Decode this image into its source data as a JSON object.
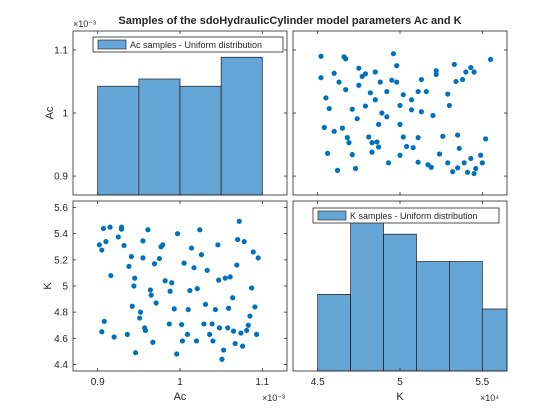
{
  "figure": {
    "title": "Samples of the sdoHydraulicCylinder model parameters Ac and K",
    "colors": {
      "face": "#66A6D6",
      "edge": "#1A1A1A",
      "marker": "#0072BD",
      "axis": "#262626"
    }
  },
  "chart_data": [
    {
      "id": "ac-hist",
      "type": "bar",
      "subtype": "histogram",
      "legend": "Ac samples - Uniform distribution",
      "legend_location": "top",
      "bin_edges": [
        0.0009,
        0.00095,
        0.001,
        0.00105,
        0.0011
      ],
      "counts": [
        3,
        3.2,
        3,
        3.8
      ],
      "xlim": [
        0.00087,
        0.00113
      ],
      "ylim": [
        0.00087,
        0.00113
      ],
      "yticks": [
        0.0009,
        0.001,
        0.0011
      ],
      "ytick_labels": [
        "0.9",
        "1",
        "1.1"
      ],
      "ylabel": "Ac",
      "y_exponent_label": "×10⁻³"
    },
    {
      "id": "ac-vs-k-scatter",
      "type": "scatter",
      "x_name": "K",
      "y_name": "Ac",
      "xlim": [
        43500,
        56500
      ],
      "ylim": [
        0.00087,
        0.00113
      ],
      "points": [
        [
          45200,
          0.001056
        ],
        [
          45500,
          0.001024
        ],
        [
          45700,
          0.001007
        ],
        [
          45400,
          0.000977
        ],
        [
          45600,
          0.000936
        ],
        [
          46000,
          0.000971
        ],
        [
          45200,
          0.00109
        ],
        [
          46300,
          0.001049
        ],
        [
          46700,
          0.001037
        ],
        [
          46500,
          0.000976
        ],
        [
          46200,
          0.000909
        ],
        [
          46800,
          0.000961
        ],
        [
          47100,
          0.001006
        ],
        [
          47300,
          0.000912
        ],
        [
          46700,
          0.001086
        ],
        [
          47500,
          0.001071
        ],
        [
          47100,
          0.000934
        ],
        [
          47900,
          0.001062
        ],
        [
          48200,
          0.001032
        ],
        [
          48300,
          0.000953
        ],
        [
          48600,
          0.000954
        ],
        [
          47900,
          0.001011
        ],
        [
          48800,
          0.001049
        ],
        [
          48300,
          0.000938
        ],
        [
          48500,
          0.001065
        ],
        [
          48700,
          0.000946
        ],
        [
          48900,
          0.001
        ],
        [
          49200,
          0.000994
        ],
        [
          48700,
          0.000982
        ],
        [
          46000,
          0.001063
        ],
        [
          46600,
          0.001089
        ],
        [
          47700,
          0.001058
        ],
        [
          46900,
          0.000953
        ],
        [
          47400,
          0.000991
        ],
        [
          48100,
          0.000962
        ],
        [
          48500,
          0.001021
        ],
        [
          47500,
          0.001044
        ],
        [
          49300,
          0.000921
        ],
        [
          49200,
          0.001034
        ],
        [
          49600,
          0.001094
        ],
        [
          50000,
          0.000933
        ],
        [
          49800,
          0.001049
        ],
        [
          50000,
          0.000982
        ],
        [
          50000,
          0.001012
        ],
        [
          49500,
          0.001052
        ],
        [
          50200,
          0.000962
        ],
        [
          50400,
          0.000947
        ],
        [
          50800,
          0.000945
        ],
        [
          51100,
          0.000922
        ],
        [
          51300,
          0.001002
        ],
        [
          51100,
          0.001034
        ],
        [
          51300,
          0.001053
        ],
        [
          50700,
          0.001005
        ],
        [
          52200,
          0.001067
        ],
        [
          52200,
          0.001061
        ],
        [
          52400,
          0.000935
        ],
        [
          52600,
          0.000963
        ],
        [
          52000,
          0.000996
        ],
        [
          52900,
          0.000921
        ],
        [
          53000,
          0.001012
        ],
        [
          53200,
          0.000907
        ],
        [
          53400,
          0.00105
        ],
        [
          53300,
          0.001077
        ],
        [
          53500,
          0.000965
        ],
        [
          53600,
          0.000944
        ],
        [
          53500,
          0.000913
        ],
        [
          53900,
          0.000921
        ],
        [
          54100,
          0.000906
        ],
        [
          54000,
          0.001065
        ],
        [
          54300,
          0.000928
        ],
        [
          54500,
          0.000904
        ],
        [
          54600,
          0.000912
        ],
        [
          54900,
          0.000933
        ],
        [
          55200,
          0.000959
        ],
        [
          55500,
          0.001085
        ],
        [
          54500,
          0.001065
        ],
        [
          55000,
          0.000921
        ],
        [
          54300,
          0.001072
        ],
        [
          53800,
          0.001053
        ],
        [
          51900,
          0.000914
        ],
        [
          51700,
          0.000918
        ],
        [
          51600,
          0.001034
        ],
        [
          51100,
          0.000961
        ],
        [
          50700,
          0.001021
        ],
        [
          50200,
          0.001029
        ],
        [
          49800,
          0.001075
        ],
        [
          52900,
          0.00103
        ]
      ]
    },
    {
      "id": "k-vs-ac-scatter",
      "type": "scatter",
      "x_name": "Ac",
      "y_name": "K",
      "xlim": [
        0.00087,
        0.00113
      ],
      "ylim": [
        43500,
        56500
      ],
      "points": [
        [
          0.000902,
          53150
        ],
        [
          0.000905,
          52750
        ],
        [
          0.000907,
          54400
        ],
        [
          0.00091,
          53400
        ],
        [
          0.000905,
          46500
        ],
        [
          0.000908,
          47300
        ],
        [
          0.000915,
          54500
        ],
        [
          0.000916,
          50800
        ],
        [
          0.00092,
          46100
        ],
        [
          0.000925,
          53750
        ],
        [
          0.000929,
          54500
        ],
        [
          0.000929,
          54350
        ],
        [
          0.000932,
          53100
        ],
        [
          0.000936,
          46300
        ],
        [
          0.000938,
          51500
        ],
        [
          0.000941,
          52250
        ],
        [
          0.000942,
          48450
        ],
        [
          0.000944,
          50000
        ],
        [
          0.000945,
          50600
        ],
        [
          0.000946,
          44900
        ],
        [
          0.000951,
          47550
        ],
        [
          0.000952,
          48000
        ],
        [
          0.000955,
          52150
        ],
        [
          0.000955,
          53450
        ],
        [
          0.000957,
          46800
        ],
        [
          0.000958,
          46600
        ],
        [
          0.000961,
          54300
        ],
        [
          0.000964,
          49700
        ],
        [
          0.000965,
          49300
        ],
        [
          0.000967,
          45700
        ],
        [
          0.000969,
          51700
        ],
        [
          0.000971,
          48700
        ],
        [
          0.000975,
          52100
        ],
        [
          0.000977,
          53000
        ],
        [
          0.000979,
          53150
        ],
        [
          0.000982,
          50400
        ],
        [
          0.000987,
          47100
        ],
        [
          0.000988,
          49600
        ],
        [
          0.00099,
          50250
        ],
        [
          0.000993,
          48250
        ],
        [
          0.000996,
          44800
        ],
        [
          0.000997,
          54000
        ],
        [
          0.001002,
          47050
        ],
        [
          0.001003,
          45800
        ],
        [
          0.001005,
          51750
        ],
        [
          0.001009,
          46300
        ],
        [
          0.00101,
          48200
        ],
        [
          0.001012,
          49650
        ],
        [
          0.001014,
          52900
        ],
        [
          0.001017,
          51400
        ],
        [
          0.00102,
          45800
        ],
        [
          0.001021,
          49800
        ],
        [
          0.001024,
          54300
        ],
        [
          0.001026,
          52400
        ],
        [
          0.001029,
          47100
        ],
        [
          0.001031,
          48600
        ],
        [
          0.001033,
          51200
        ],
        [
          0.001036,
          46300
        ],
        [
          0.001039,
          47100
        ],
        [
          0.00104,
          45800
        ],
        [
          0.001043,
          48200
        ],
        [
          0.001046,
          53150
        ],
        [
          0.001047,
          50450
        ],
        [
          0.001048,
          46800
        ],
        [
          0.001051,
          44400
        ],
        [
          0.001053,
          45100
        ],
        [
          0.001055,
          50600
        ],
        [
          0.001058,
          46800
        ],
        [
          0.001059,
          48300
        ],
        [
          0.001061,
          50700
        ],
        [
          0.001064,
          49100
        ],
        [
          0.001065,
          46550
        ],
        [
          0.001067,
          45600
        ],
        [
          0.001069,
          51600
        ],
        [
          0.00107,
          53550
        ],
        [
          0.001072,
          54950
        ],
        [
          0.001074,
          46400
        ],
        [
          0.001076,
          45400
        ],
        [
          0.001078,
          53400
        ],
        [
          0.001081,
          46600
        ],
        [
          0.001083,
          47000
        ],
        [
          0.001085,
          47700
        ],
        [
          0.001087,
          49850
        ],
        [
          0.001089,
          52600
        ],
        [
          0.001091,
          48400
        ],
        [
          0.001093,
          46300
        ],
        [
          0.001095,
          52150
        ]
      ]
    },
    {
      "id": "k-hist",
      "type": "bar",
      "subtype": "histogram",
      "legend": "K samples - Uniform distribution",
      "legend_location": "top",
      "bin_edges": [
        45000,
        47000,
        49000,
        51000,
        53000,
        55000,
        57000
      ],
      "counts": [
        2.1,
        4.1,
        3.75,
        3.0,
        3.0,
        1.7
      ],
      "xlim": [
        43500,
        56500
      ],
      "xticks": [
        45000,
        50000,
        55000
      ],
      "xtick_labels": [
        "4.5",
        "5",
        "5.5"
      ],
      "xlabel": "K",
      "x_exponent_label": "×10⁴"
    }
  ],
  "shared_axes": {
    "ac_ticks": [
      0.0009,
      0.001,
      0.0011
    ],
    "ac_tick_labels": [
      "0.9",
      "1",
      "1.1"
    ],
    "ac_label": "Ac",
    "ac_exponent_label": "×10⁻³",
    "k_ticks": [
      44000,
      46000,
      48000,
      50000,
      52000,
      54000,
      56000
    ],
    "k_tick_labels": [
      "4.4",
      "4.6",
      "4.8",
      "5",
      "5.2",
      "5.4",
      "5.6"
    ],
    "k_label": "K"
  }
}
